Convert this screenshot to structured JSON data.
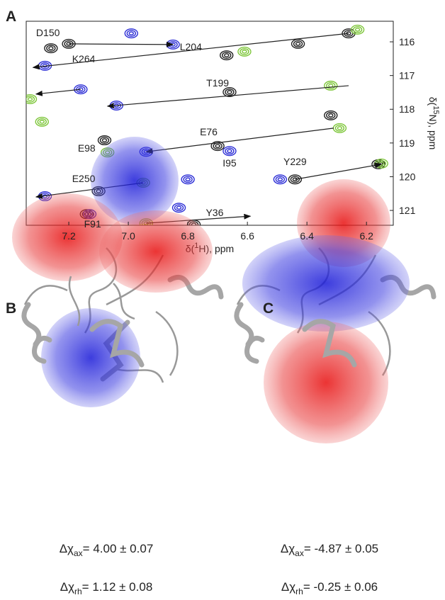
{
  "chart_data": {
    "type": "nmr-spectrum",
    "panel_label": "A",
    "xlabel_parts": [
      "δ(",
      "1",
      "H), ppm"
    ],
    "ylabel_parts": [
      "δ(",
      "15",
      "N), ppm"
    ],
    "xlim": [
      7.343,
      6.11
    ],
    "ylim": [
      115.39,
      121.44
    ],
    "xticks": [
      7.2,
      {
        "value": 7,
        "label": "7.0"
      },
      6.8,
      6.6,
      6.4,
      6.2
    ],
    "yticks": [
      116,
      117,
      118,
      119,
      120,
      121
    ],
    "series": [
      {
        "name": "reference",
        "color": "#222222",
        "x": [
          7.2,
          6.67,
          6.43,
          6.26,
          6.66,
          6.32,
          7.08,
          6.7,
          6.44,
          7.1,
          6.16,
          6.78,
          7.14,
          7.26
        ],
        "values": [
          116.06,
          116.4,
          116.06,
          115.75,
          117.49,
          118.18,
          118.92,
          119.09,
          120.08,
          120.43,
          119.63,
          121.42,
          121.11,
          116.19
        ]
      },
      {
        "name": "blue",
        "color": "#2d2fd6",
        "x": [
          6.99,
          6.85,
          7.16,
          7.04,
          6.94,
          6.66,
          6.8,
          6.49,
          7.28,
          7.13,
          7.28,
          6.83
        ],
        "values": [
          115.75,
          116.08,
          117.41,
          117.89,
          119.26,
          119.24,
          120.08,
          120.08,
          120.58,
          121.11,
          116.71,
          120.92
        ]
      },
      {
        "name": "green",
        "color": "#7ec63a",
        "x": [
          6.61,
          6.23,
          6.32,
          7.07,
          6.95,
          6.29,
          6.15,
          6.94,
          7.33,
          7.29
        ],
        "values": [
          116.29,
          115.64,
          117.3,
          119.28,
          120.18,
          118.56,
          119.61,
          121.38,
          117.7,
          118.37
        ]
      }
    ],
    "arrows": [
      {
        "x": [
          7.2,
          6.85
        ],
        "y": [
          116.06,
          116.08
        ]
      },
      {
        "x": [
          6.26,
          7.32
        ],
        "y": [
          115.75,
          116.76
        ]
      },
      {
        "x": [
          7.16,
          7.31
        ],
        "y": [
          117.41,
          117.55
        ]
      },
      {
        "x": [
          6.26,
          7.07
        ],
        "y": [
          117.3,
          117.91
        ]
      },
      {
        "x": [
          6.31,
          6.94
        ],
        "y": [
          118.56,
          119.26
        ]
      },
      {
        "x": [
          6.44,
          6.15
        ],
        "y": [
          120.08,
          119.63
        ]
      },
      {
        "x": [
          6.95,
          7.31
        ],
        "y": [
          120.18,
          120.6
        ]
      },
      {
        "x": [
          6.94,
          6.59
        ],
        "y": [
          121.38,
          121.17
        ]
      }
    ],
    "annotations": [
      {
        "text": "D150",
        "x": 7.27,
        "y": 115.73
      },
      {
        "text": "L204",
        "x": 6.79,
        "y": 116.15
      },
      {
        "text": "K264",
        "x": 7.15,
        "y": 116.5
      },
      {
        "text": "T199",
        "x": 6.7,
        "y": 117.22
      },
      {
        "text": "E76",
        "x": 6.73,
        "y": 118.67
      },
      {
        "text": "E98",
        "x": 7.14,
        "y": 119.15
      },
      {
        "text": "I95",
        "x": 6.66,
        "y": 119.59
      },
      {
        "text": "Y229",
        "x": 6.44,
        "y": 119.55
      },
      {
        "text": "E250",
        "x": 7.15,
        "y": 120.05
      },
      {
        "text": "Y36",
        "x": 6.71,
        "y": 121.06
      },
      {
        "text": "F91",
        "x": 7.12,
        "y": 121.4
      }
    ]
  },
  "panels": [
    {
      "label": "B",
      "ax": {
        "symbol": "Δχ",
        "sub": "ax",
        "rest": "= 4.00 ± 0.07"
      },
      "rh": {
        "symbol": "Δχ",
        "sub": "rh",
        "rest": "= 1.12 ± 0.08"
      }
    },
    {
      "label": "C",
      "ax": {
        "symbol": "Δχ",
        "sub": "ax",
        "rest": "= -4.87 ± 0.05"
      },
      "rh": {
        "symbol": "Δχ",
        "sub": "rh",
        "rest": "= -0.25 ± 0.06"
      }
    }
  ]
}
